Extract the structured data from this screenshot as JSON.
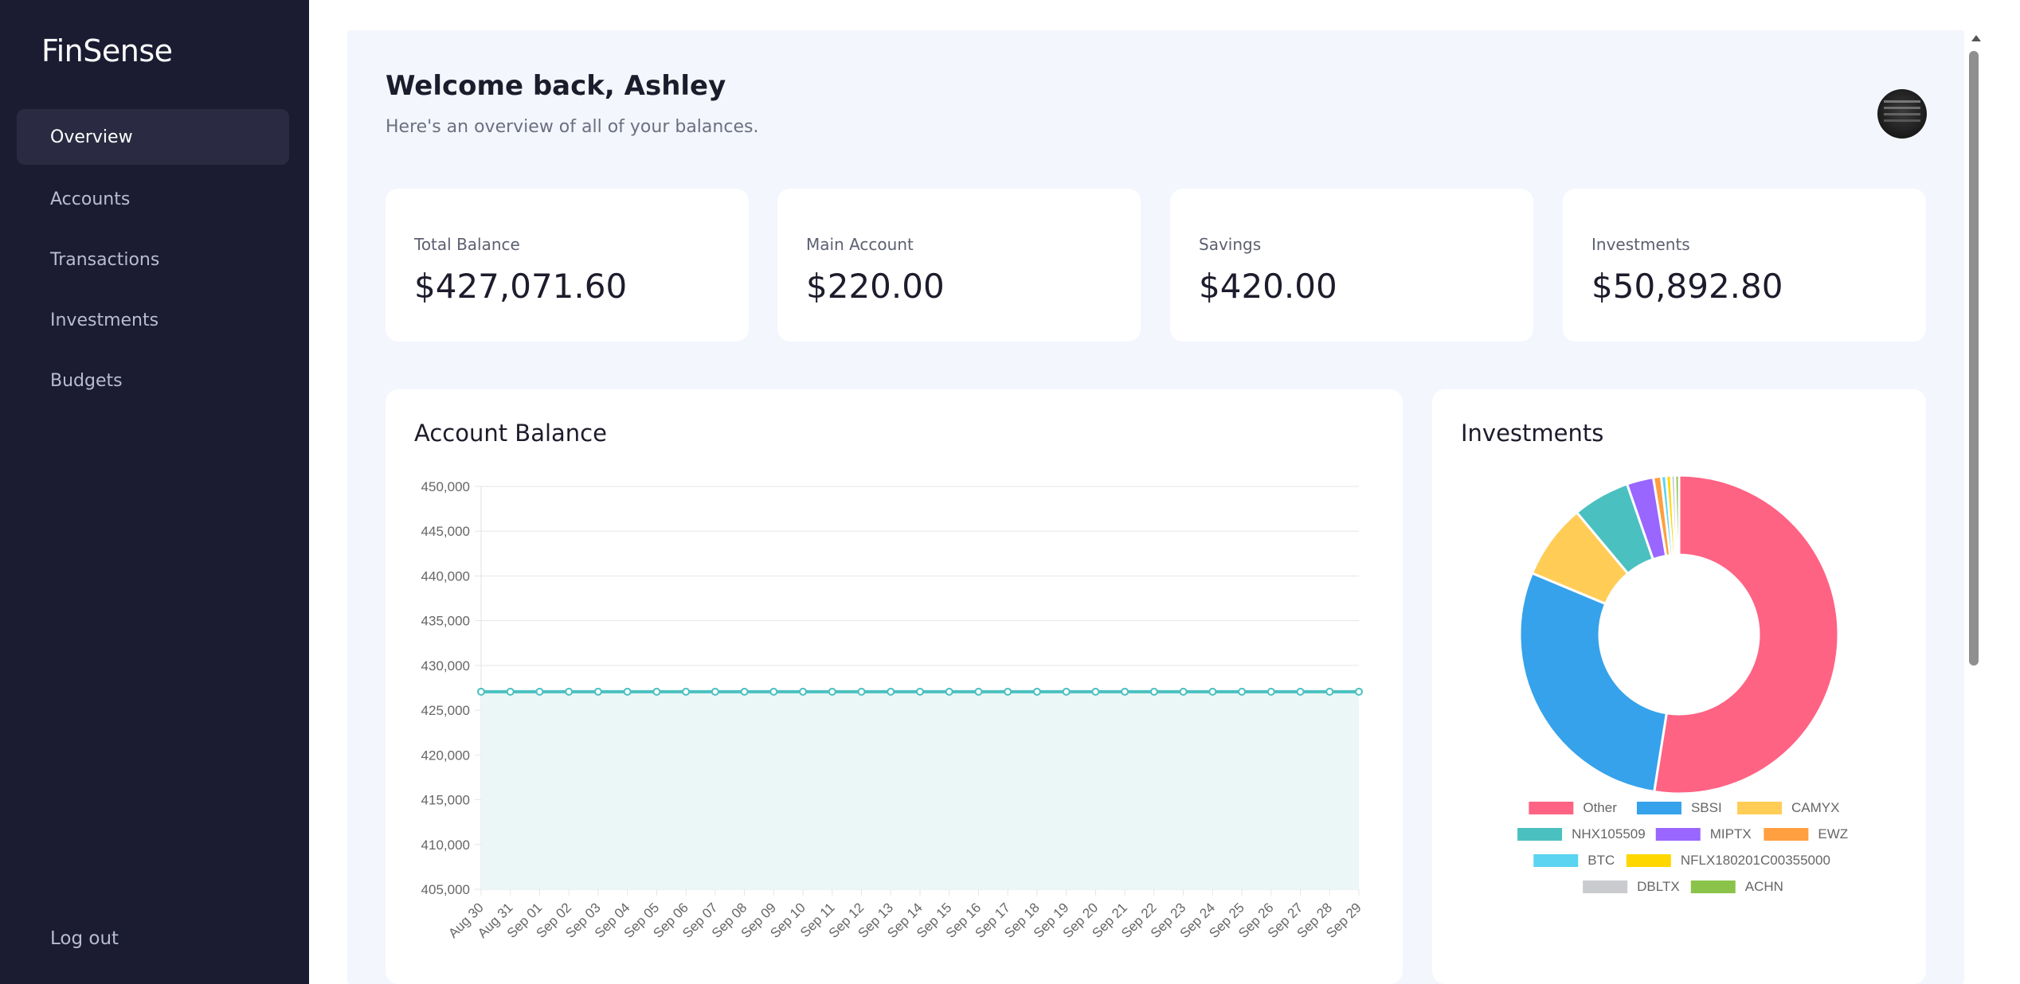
{
  "app": {
    "brand": "FinSense"
  },
  "sidebar": {
    "items": [
      {
        "label": "Overview",
        "active": true
      },
      {
        "label": "Accounts",
        "active": false
      },
      {
        "label": "Transactions",
        "active": false
      },
      {
        "label": "Investments",
        "active": false
      },
      {
        "label": "Budgets",
        "active": false
      }
    ],
    "logout_label": "Log out"
  },
  "header": {
    "welcome": "Welcome back, Ashley",
    "subtitle": "Here's an overview of all of your balances."
  },
  "cards": [
    {
      "label": "Total Balance",
      "value": "$427,071.60"
    },
    {
      "label": "Main Account",
      "value": "$220.00"
    },
    {
      "label": "Savings",
      "value": "$420.00"
    },
    {
      "label": "Investments",
      "value": "$50,892.80"
    }
  ],
  "balance_panel": {
    "title": "Account Balance"
  },
  "investments_panel": {
    "title": "Investments"
  },
  "colors": {
    "sidebar_bg": "#1b1b32",
    "line": "#4bc0c0",
    "fill": "#eaf7f6"
  },
  "chart_data": [
    {
      "type": "area",
      "title": "Account Balance",
      "xlabel": "",
      "ylabel": "",
      "ylim": [
        405000,
        450000
      ],
      "yticks": [
        450000,
        445000,
        440000,
        435000,
        430000,
        425000,
        420000,
        415000,
        410000,
        405000
      ],
      "ytick_labels": [
        "450,000",
        "445,000",
        "440,000",
        "435,000",
        "430,000",
        "425,000",
        "420,000",
        "415,000",
        "410,000",
        "405,000"
      ],
      "categories": [
        "Aug 30",
        "Aug 31",
        "Sep 01",
        "Sep 02",
        "Sep 03",
        "Sep 04",
        "Sep 05",
        "Sep 06",
        "Sep 07",
        "Sep 08",
        "Sep 09",
        "Sep 10",
        "Sep 11",
        "Sep 12",
        "Sep 13",
        "Sep 14",
        "Sep 15",
        "Sep 16",
        "Sep 17",
        "Sep 18",
        "Sep 19",
        "Sep 20",
        "Sep 21",
        "Sep 22",
        "Sep 23",
        "Sep 24",
        "Sep 25",
        "Sep 26",
        "Sep 27",
        "Sep 28",
        "Sep 29"
      ],
      "values": [
        427071.6,
        427071.6,
        427071.6,
        427071.6,
        427071.6,
        427071.6,
        427071.6,
        427071.6,
        427071.6,
        427071.6,
        427071.6,
        427071.6,
        427071.6,
        427071.6,
        427071.6,
        427071.6,
        427071.6,
        427071.6,
        427071.6,
        427071.6,
        427071.6,
        427071.6,
        427071.6,
        427071.6,
        427071.6,
        427071.6,
        427071.6,
        427071.6,
        427071.6,
        427071.6,
        427071.6
      ],
      "grid": true,
      "legend": "none"
    },
    {
      "type": "pie",
      "title": "Investments",
      "legend": "bottom",
      "slices": [
        {
          "label": "Other",
          "value": 52.5,
          "color": "#ff6384"
        },
        {
          "label": "SBSI",
          "value": 28.8,
          "color": "#36a2eb"
        },
        {
          "label": "CAMYX",
          "value": 7.6,
          "color": "#ffcd56"
        },
        {
          "label": "NHX105509",
          "value": 5.8,
          "color": "#4bc0c0"
        },
        {
          "label": "MIPTX",
          "value": 2.7,
          "color": "#9966ff"
        },
        {
          "label": "EWZ",
          "value": 0.8,
          "color": "#ff9f40"
        },
        {
          "label": "BTC",
          "value": 0.5,
          "color": "#5ad4f0"
        },
        {
          "label": "NFLX180201C00355000",
          "value": 0.5,
          "color": "#ffd700"
        },
        {
          "label": "DBLTX",
          "value": 0.4,
          "color": "#c9cbcf"
        },
        {
          "label": "ACHN",
          "value": 0.4,
          "color": "#8bc34a"
        }
      ]
    }
  ]
}
